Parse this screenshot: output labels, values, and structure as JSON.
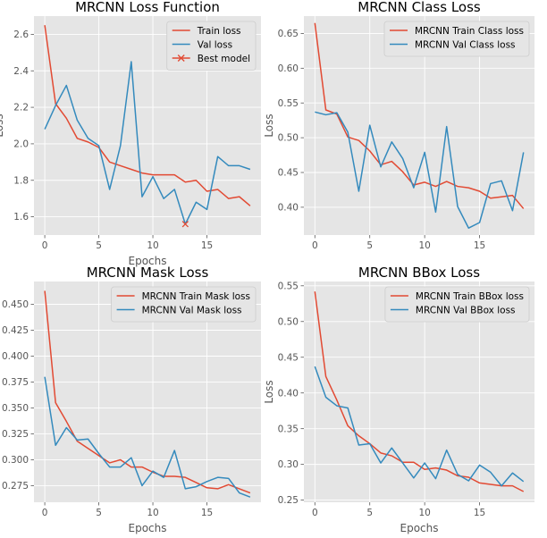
{
  "colors": {
    "train": "#E24A33",
    "val": "#348ABD",
    "panel_bg": "#E5E5E5",
    "grid": "#FFFFFF",
    "legend_bg": "#E5E5E5"
  },
  "chart_data": [
    {
      "type": "line",
      "title": "MRCNN Loss Function",
      "xlabel": "Epochs",
      "ylabel": "Loss",
      "xlim": [
        -1,
        20
      ],
      "ylim": [
        1.5,
        2.7
      ],
      "xticks": [
        "0",
        "5",
        "10",
        "15"
      ],
      "yticks": [
        "1.6",
        "1.8",
        "2.0",
        "2.2",
        "2.4",
        "2.6"
      ],
      "ytick_values": [
        1.6,
        1.8,
        2.0,
        2.2,
        2.4,
        2.6
      ],
      "grid": true,
      "legend": "top-right",
      "x": [
        0,
        1,
        2,
        3,
        4,
        5,
        6,
        7,
        8,
        9,
        10,
        11,
        12,
        13,
        14,
        15,
        16,
        17,
        18,
        19
      ],
      "series": [
        {
          "name": "Train loss",
          "color_key": "train",
          "values": [
            2.65,
            2.22,
            2.14,
            2.03,
            2.01,
            1.98,
            1.9,
            1.88,
            1.86,
            1.84,
            1.83,
            1.83,
            1.83,
            1.79,
            1.8,
            1.74,
            1.75,
            1.7,
            1.71,
            1.66
          ]
        },
        {
          "name": "Val loss",
          "color_key": "val",
          "values": [
            2.08,
            2.21,
            2.32,
            2.13,
            2.03,
            1.99,
            1.75,
            1.99,
            2.45,
            1.71,
            1.82,
            1.7,
            1.75,
            1.56,
            1.68,
            1.64,
            1.93,
            1.88,
            1.88,
            1.86
          ]
        }
      ],
      "marker": {
        "name": "Best model",
        "x": 13,
        "y": 1.56,
        "color_key": "train"
      }
    },
    {
      "type": "line",
      "title": "MRCNN Class Loss",
      "xlabel": "",
      "ylabel": "Loss",
      "xlim": [
        -1,
        20
      ],
      "ylim": [
        0.36,
        0.675
      ],
      "xticks": [
        "0",
        "5",
        "10",
        "15"
      ],
      "yticks": [
        "0.40",
        "0.45",
        "0.50",
        "0.55",
        "0.60",
        "0.65"
      ],
      "ytick_values": [
        0.4,
        0.45,
        0.5,
        0.55,
        0.6,
        0.65
      ],
      "grid": true,
      "legend": "top-right",
      "x": [
        0,
        1,
        2,
        3,
        4,
        5,
        6,
        7,
        8,
        9,
        10,
        11,
        12,
        13,
        14,
        15,
        16,
        17,
        18,
        19
      ],
      "series": [
        {
          "name": "MRCNN Train Class loss",
          "color_key": "train",
          "values": [
            0.665,
            0.54,
            0.534,
            0.501,
            0.496,
            0.481,
            0.461,
            0.466,
            0.451,
            0.432,
            0.436,
            0.43,
            0.437,
            0.43,
            0.428,
            0.423,
            0.413,
            0.415,
            0.417,
            0.398
          ]
        },
        {
          "name": "MRCNN Val Class loss",
          "color_key": "val",
          "values": [
            0.537,
            0.533,
            0.536,
            0.508,
            0.423,
            0.518,
            0.458,
            0.494,
            0.47,
            0.428,
            0.479,
            0.393,
            0.516,
            0.401,
            0.37,
            0.378,
            0.434,
            0.438,
            0.395,
            0.479
          ]
        }
      ]
    },
    {
      "type": "line",
      "title": "MRCNN Mask Loss",
      "xlabel": "Epochs",
      "ylabel": "",
      "xlim": [
        -1,
        20
      ],
      "ylim": [
        0.259,
        0.472
      ],
      "xticks": [
        "0",
        "5",
        "10",
        "15"
      ],
      "yticks": [
        "0.275",
        "0.300",
        "0.325",
        "0.350",
        "0.375",
        "0.400",
        "0.425",
        "0.450"
      ],
      "ytick_values": [
        0.275,
        0.3,
        0.325,
        0.35,
        0.375,
        0.4,
        0.425,
        0.45
      ],
      "grid": true,
      "legend": "top-right",
      "x": [
        0,
        1,
        2,
        3,
        4,
        5,
        6,
        7,
        8,
        9,
        10,
        11,
        12,
        13,
        14,
        15,
        16,
        17,
        18,
        19
      ],
      "series": [
        {
          "name": "MRCNN Train Mask loss",
          "color_key": "train",
          "values": [
            0.463,
            0.355,
            0.337,
            0.318,
            0.311,
            0.304,
            0.297,
            0.3,
            0.293,
            0.293,
            0.288,
            0.284,
            0.284,
            0.283,
            0.278,
            0.273,
            0.272,
            0.276,
            0.272,
            0.268
          ]
        },
        {
          "name": "MRCNN Val Mask loss",
          "color_key": "val",
          "values": [
            0.38,
            0.314,
            0.331,
            0.319,
            0.32,
            0.306,
            0.293,
            0.293,
            0.302,
            0.275,
            0.289,
            0.283,
            0.309,
            0.272,
            0.274,
            0.279,
            0.283,
            0.282,
            0.268,
            0.264
          ]
        }
      ]
    },
    {
      "type": "line",
      "title": "MRCNN BBox Loss",
      "xlabel": "Epochs",
      "ylabel": "Loss",
      "xlim": [
        -1,
        20
      ],
      "ylim": [
        0.247,
        0.556
      ],
      "xticks": [
        "0",
        "5",
        "10",
        "15"
      ],
      "yticks": [
        "0.25",
        "0.30",
        "0.35",
        "0.40",
        "0.45",
        "0.50",
        "0.55"
      ],
      "ytick_values": [
        0.25,
        0.3,
        0.35,
        0.4,
        0.45,
        0.5,
        0.55
      ],
      "grid": true,
      "legend": "top-right",
      "x": [
        0,
        1,
        2,
        3,
        4,
        5,
        6,
        7,
        8,
        9,
        10,
        11,
        12,
        13,
        14,
        15,
        16,
        17,
        18,
        19
      ],
      "series": [
        {
          "name": "MRCNN Train BBox loss",
          "color_key": "train",
          "values": [
            0.542,
            0.423,
            0.39,
            0.354,
            0.34,
            0.329,
            0.316,
            0.312,
            0.303,
            0.303,
            0.293,
            0.295,
            0.292,
            0.284,
            0.282,
            0.274,
            0.272,
            0.27,
            0.27,
            0.262
          ]
        },
        {
          "name": "MRCNN Val BBox loss",
          "color_key": "val",
          "values": [
            0.437,
            0.394,
            0.382,
            0.379,
            0.327,
            0.329,
            0.302,
            0.323,
            0.302,
            0.281,
            0.302,
            0.28,
            0.32,
            0.286,
            0.277,
            0.299,
            0.289,
            0.27,
            0.288,
            0.276
          ]
        }
      ]
    }
  ]
}
